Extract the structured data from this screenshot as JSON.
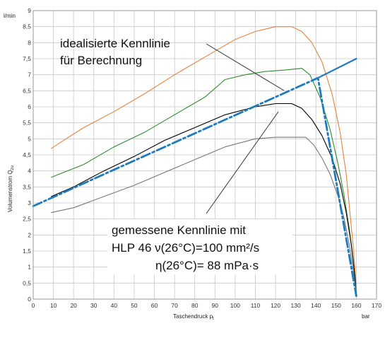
{
  "chart_data": {
    "type": "line",
    "title": "",
    "xlabel": "Taschendruck p",
    "xlabel_sub": "t",
    "xunit": "bar",
    "ylabel": "Volumenstrom Q",
    "ylabel_sub": "zu",
    "yunit": "l/min",
    "xlim": [
      0,
      170
    ],
    "ylim": [
      0,
      9
    ],
    "x_ticks": [
      "0",
      "10",
      "20",
      "30",
      "40",
      "50",
      "60",
      "70",
      "80",
      "90",
      "100",
      "110",
      "120",
      "130",
      "140",
      "150",
      "160",
      "170"
    ],
    "y_ticks": [
      "0",
      "0,5",
      "1",
      "1,5",
      "2",
      "2,5",
      "3",
      "3,5",
      "4",
      "4,5",
      "5",
      "5,5",
      "6",
      "6,5",
      "7",
      "7,5",
      "8",
      "8,5",
      "9"
    ],
    "grid": true,
    "colors": {
      "orange": "#e8823a",
      "green": "#2e8b2e",
      "black": "#000000",
      "gray": "#777777",
      "ideal": "#1a7bbf",
      "annot": "#333333"
    },
    "series": [
      {
        "color": "orange",
        "dash": "solid",
        "x": [
          9,
          15,
          25,
          40,
          55,
          70,
          85,
          100,
          110,
          120,
          128,
          133,
          138,
          143,
          148,
          152,
          155,
          157,
          158.5,
          159.5,
          160
        ],
        "y": [
          4.7,
          4.95,
          5.35,
          5.85,
          6.4,
          7.0,
          7.55,
          8.1,
          8.35,
          8.5,
          8.5,
          8.35,
          8.0,
          7.4,
          6.4,
          5.2,
          3.9,
          2.6,
          1.6,
          0.8,
          0.2
        ]
      },
      {
        "color": "green",
        "dash": "solid",
        "x": [
          9,
          15,
          25,
          40,
          55,
          70,
          85,
          95,
          105,
          115,
          125,
          133,
          137,
          142,
          147,
          151,
          154,
          156.5,
          158.5,
          159.7,
          160
        ],
        "y": [
          3.8,
          3.95,
          4.2,
          4.75,
          5.2,
          5.75,
          6.3,
          6.85,
          7.0,
          7.1,
          7.15,
          7.2,
          7.0,
          6.3,
          5.3,
          4.2,
          3.2,
          2.2,
          1.2,
          0.5,
          0.1
        ]
      },
      {
        "color": "black",
        "dash": "solid",
        "x": [
          9,
          20,
          35,
          50,
          65,
          80,
          95,
          110,
          120,
          128,
          133,
          138,
          143,
          148,
          152,
          155,
          157.5,
          159.3,
          160
        ],
        "y": [
          3.2,
          3.5,
          4.0,
          4.45,
          4.95,
          5.35,
          5.75,
          6.0,
          6.1,
          6.1,
          5.95,
          5.6,
          5.1,
          4.4,
          3.6,
          2.7,
          1.7,
          0.7,
          0.1
        ]
      },
      {
        "color": "gray",
        "dash": "solid",
        "x": [
          9,
          20,
          35,
          50,
          65,
          80,
          95,
          110,
          120,
          130,
          135,
          139,
          143,
          147,
          151,
          154,
          156.5,
          158.5,
          159.7,
          160
        ],
        "y": [
          2.7,
          2.85,
          3.2,
          3.55,
          3.95,
          4.35,
          4.75,
          5.0,
          5.05,
          5.05,
          5.05,
          4.8,
          4.4,
          3.9,
          3.2,
          2.5,
          1.7,
          0.9,
          0.3,
          0.1
        ]
      },
      {
        "color": "ideal",
        "dash": "dashdot",
        "x": [
          0,
          141,
          160
        ],
        "y": [
          2.9,
          6.9,
          0.1
        ]
      },
      {
        "color": "ideal",
        "dash": "solid_thin",
        "x": [
          141,
          160
        ],
        "y": [
          6.9,
          7.5
        ]
      }
    ],
    "annotations": [
      {
        "lines": [
          "idealisierte Kennlinie",
          "für Berechnung"
        ]
      },
      {
        "lines": [
          "gemessene Kennlinie mit",
          "HLP 46 ν(26°C)=100 mm²/s",
          "η(26°C)=  88 mPa·s"
        ]
      }
    ]
  }
}
